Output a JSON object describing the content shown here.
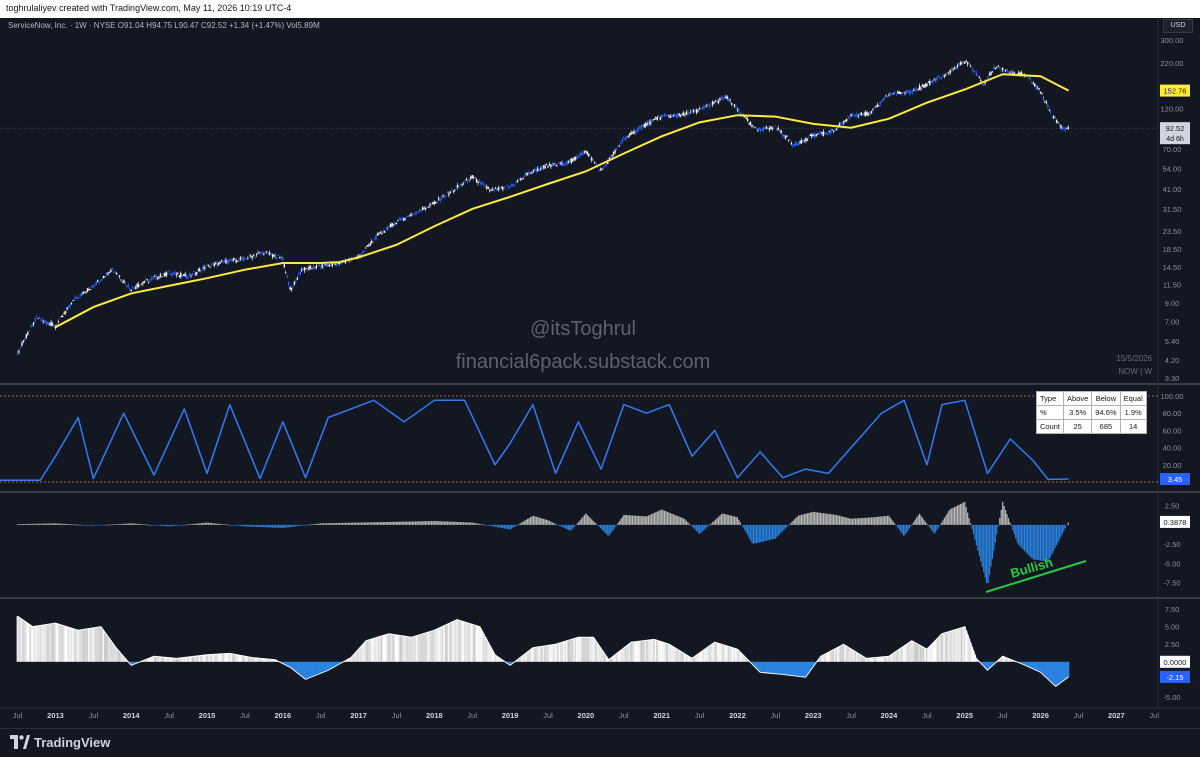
{
  "header": {
    "attribution": "toghrulaliyev created with TradingView.com, May 11, 2026 10:19 UTC-4"
  },
  "symbol": {
    "line": "ServiceNow, Inc. · 1W · NYSE  O91.04  H94.75  L90.47  C92.52  +1.34 (+1.47%)  Vol5.89M"
  },
  "currency": "USD",
  "watermark": {
    "handle": "@itsToghrul",
    "site": "financial6pack.substack.com"
  },
  "date_tag": {
    "date": "15/5/2026",
    "ticker": "NOW | W"
  },
  "stats_table": {
    "headers": [
      "Type",
      "Above",
      "Below",
      "Equal"
    ],
    "rows": [
      [
        "%",
        "3.5%",
        "94.6%",
        "1.9%"
      ],
      [
        "Count",
        "25",
        "685",
        "14"
      ]
    ]
  },
  "annotation": {
    "text": "Bullish"
  },
  "footer": {
    "brand": "TradingView"
  },
  "colors": {
    "background": "#131722",
    "candle_up": "#ffffff",
    "candle_down": "#2962ff",
    "ma": "#ffeb3b",
    "oscillator": "#2f7bf5",
    "divergence": "#26c940",
    "hist_positive": "#b8b8b8",
    "hist_negative": "#2a83e0"
  },
  "chart_data": [
    {
      "type": "line",
      "y_scale": "log",
      "y_ticks": [
        "300.00",
        "220.00",
        "160.00",
        "120.00",
        "95.00",
        "70.00",
        "54.00",
        "41.00",
        "31.50",
        "23.50",
        "18.50",
        "14.50",
        "11.50",
        "9.00",
        "7.00",
        "5.40",
        "4.20",
        "3.30"
      ],
      "x_labels": [
        "Jul",
        "2013",
        "Jul",
        "2014",
        "Jul",
        "2015",
        "Jul",
        "2016",
        "Jul",
        "2017",
        "Jul",
        "2018",
        "Jul",
        "2019",
        "Jul",
        "2020",
        "Jul",
        "2021",
        "Jul",
        "2022",
        "Jul",
        "2023",
        "Jul",
        "2024",
        "Jul",
        "2025",
        "Jul",
        "2026",
        "Jul",
        "2027",
        "Jul"
      ],
      "x": [
        2012.5,
        2012.75,
        2013.0,
        2013.25,
        2013.5,
        2013.75,
        2014.0,
        2014.25,
        2014.5,
        2014.75,
        2015.0,
        2015.25,
        2015.5,
        2015.75,
        2016.0,
        2016.1,
        2016.25,
        2016.5,
        2016.75,
        2017.0,
        2017.25,
        2017.5,
        2017.75,
        2018.0,
        2018.25,
        2018.5,
        2018.75,
        2019.0,
        2019.25,
        2019.5,
        2019.75,
        2020.0,
        2020.2,
        2020.5,
        2020.75,
        2021.0,
        2021.25,
        2021.5,
        2021.85,
        2022.0,
        2022.25,
        2022.5,
        2022.75,
        2023.0,
        2023.25,
        2023.5,
        2023.75,
        2024.0,
        2024.25,
        2024.5,
        2024.75,
        2025.0,
        2025.1,
        2025.25,
        2025.4,
        2025.6,
        2025.8,
        2026.0,
        2026.15,
        2026.3,
        2026.37
      ],
      "series": [
        {
          "name": "",
          "kind": "price",
          "values": [
            4.6,
            7.4,
            6.6,
            9.4,
            11.3,
            14.2,
            10.8,
            12.3,
            13.4,
            12.8,
            14.6,
            15.6,
            16.2,
            17.6,
            16.2,
            10.6,
            14.0,
            14.6,
            15.3,
            16.6,
            22.0,
            26.5,
            30.0,
            34.0,
            40.5,
            48.0,
            40.0,
            42.0,
            51.0,
            56.0,
            58.0,
            68.0,
            52.0,
            80.0,
            95.0,
            108.0,
            110.0,
            118.0,
            140.0,
            118.0,
            90.0,
            94.0,
            74.0,
            84.0,
            88.0,
            110.0,
            112.0,
            145.0,
            150.0,
            165.0,
            190.0,
            225.0,
            205.0,
            165.0,
            210.0,
            195.0,
            188.0,
            150.0,
            110.0,
            91.0,
            92.52
          ]
        },
        {
          "name": "",
          "kind": "moving_average",
          "x": [
            2013.0,
            2013.5,
            2014.0,
            2014.5,
            2015.0,
            2015.5,
            2016.0,
            2016.5,
            2016.75,
            2017.0,
            2017.5,
            2018.0,
            2018.5,
            2019.0,
            2019.5,
            2020.0,
            2020.5,
            2021.0,
            2021.5,
            2022.0,
            2022.5,
            2023.0,
            2023.5,
            2024.0,
            2024.5,
            2025.0,
            2025.5,
            2026.0,
            2026.37
          ],
          "values": [
            6.5,
            8.5,
            10.2,
            11.3,
            12.5,
            14.0,
            15.3,
            15.3,
            15.5,
            16.5,
            19.5,
            25.0,
            31.5,
            37.0,
            44.0,
            52.0,
            66.0,
            83.0,
            100.0,
            110.0,
            108.0,
            98.0,
            93.0,
            105.0,
            130.0,
            155.0,
            190.0,
            185.0,
            152.76
          ]
        }
      ],
      "last_labels": {
        "ma": "152.76",
        "price": "92.52",
        "countdown": "4d 6h"
      }
    },
    {
      "type": "line",
      "y_ticks": [
        "100.00",
        "80.00",
        "60.00",
        "40.00",
        "20.00",
        "0.00"
      ],
      "ylim": [
        0,
        100
      ],
      "x": [
        2012.2,
        2012.8,
        2013.0,
        2013.3,
        2013.5,
        2013.9,
        2014.3,
        2014.7,
        2015.0,
        2015.3,
        2015.7,
        2016.0,
        2016.3,
        2016.6,
        2016.9,
        2017.2,
        2017.6,
        2018.0,
        2018.4,
        2018.8,
        2019.0,
        2019.3,
        2019.6,
        2019.9,
        2020.2,
        2020.5,
        2020.8,
        2021.1,
        2021.4,
        2021.7,
        2022.0,
        2022.3,
        2022.6,
        2022.9,
        2023.2,
        2023.5,
        2023.9,
        2024.2,
        2024.5,
        2024.7,
        2025.0,
        2025.3,
        2025.6,
        2025.9,
        2026.1,
        2026.37
      ],
      "series": [
        {
          "name": "",
          "values": [
            2,
            2,
            30,
            75,
            4,
            80,
            8,
            85,
            10,
            90,
            4,
            70,
            5,
            75,
            85,
            95,
            70,
            95,
            95,
            20,
            45,
            90,
            10,
            70,
            15,
            90,
            80,
            90,
            30,
            60,
            5,
            35,
            5,
            15,
            10,
            40,
            80,
            95,
            20,
            90,
            95,
            10,
            50,
            25,
            3,
            3.45
          ]
        }
      ],
      "last_label": "3.45"
    },
    {
      "type": "bar",
      "y_ticks": [
        "2.50",
        "0.00",
        "-2.50",
        "-5.00",
        "-7.50"
      ],
      "ylim": [
        -9,
        3.5
      ],
      "x": [
        2012.5,
        2013.0,
        2013.5,
        2014.0,
        2014.5,
        2015.0,
        2015.5,
        2016.0,
        2016.5,
        2017.0,
        2017.5,
        2018.0,
        2018.5,
        2019.0,
        2019.3,
        2019.5,
        2019.8,
        2020.0,
        2020.3,
        2020.5,
        2020.8,
        2021.0,
        2021.3,
        2021.5,
        2021.8,
        2022.0,
        2022.2,
        2022.5,
        2022.8,
        2023.0,
        2023.3,
        2023.5,
        2023.8,
        2024.0,
        2024.2,
        2024.4,
        2024.6,
        2024.8,
        2025.0,
        2025.15,
        2025.3,
        2025.5,
        2025.7,
        2025.9,
        2026.1,
        2026.37
      ],
      "series": [
        {
          "name": "",
          "values": [
            0.1,
            0.2,
            -0.1,
            0.2,
            -0.2,
            0.3,
            -0.2,
            -0.4,
            0.2,
            0.3,
            0.4,
            0.5,
            0.3,
            -0.6,
            1.2,
            0.6,
            -0.8,
            1.5,
            -1.5,
            1.3,
            1.1,
            2.0,
            0.8,
            -1.2,
            1.5,
            1.0,
            -2.5,
            -1.8,
            1.2,
            1.7,
            1.3,
            0.8,
            1.0,
            1.2,
            -1.5,
            1.5,
            -1.2,
            2.0,
            3.0,
            -2.5,
            -8.0,
            3.0,
            -2.5,
            -4.5,
            -4.8,
            0.3878
          ]
        }
      ],
      "last_label": "0.3878",
      "annotation_label": "Bullish"
    },
    {
      "type": "area",
      "y_ticks": [
        "7.50",
        "5.00",
        "2.50",
        "0.0000",
        "-2.50",
        "-5.00"
      ],
      "ylim": [
        -6,
        8.5
      ],
      "x": [
        2012.5,
        2012.7,
        2013.0,
        2013.3,
        2013.6,
        2013.8,
        2014.0,
        2014.3,
        2014.6,
        2015.0,
        2015.3,
        2015.6,
        2015.9,
        2016.1,
        2016.3,
        2016.6,
        2016.9,
        2017.1,
        2017.4,
        2017.7,
        2018.0,
        2018.3,
        2018.6,
        2018.8,
        2019.0,
        2019.3,
        2019.6,
        2019.9,
        2020.1,
        2020.3,
        2020.6,
        2020.9,
        2021.1,
        2021.4,
        2021.7,
        2022.0,
        2022.3,
        2022.6,
        2022.9,
        2023.1,
        2023.4,
        2023.7,
        2024.0,
        2024.3,
        2024.5,
        2024.7,
        2025.0,
        2025.15,
        2025.3,
        2025.5,
        2025.8,
        2026.0,
        2026.2,
        2026.37
      ],
      "series": [
        {
          "name": "",
          "values": [
            6.5,
            5.0,
            5.5,
            4.5,
            5.0,
            2.0,
            -0.5,
            0.8,
            0.5,
            1.0,
            1.2,
            0.6,
            0.3,
            -0.8,
            -2.5,
            -1.2,
            0.6,
            3.0,
            4.0,
            3.5,
            4.5,
            6.0,
            5.0,
            1.0,
            -0.5,
            2.0,
            2.5,
            3.5,
            3.5,
            0.3,
            2.8,
            3.2,
            2.5,
            0.5,
            2.8,
            1.8,
            -1.5,
            -1.8,
            -2.2,
            0.8,
            2.5,
            0.5,
            0.8,
            3.0,
            1.8,
            4.0,
            5.0,
            0.5,
            -1.2,
            0.8,
            -0.5,
            -1.5,
            -3.5,
            -2.15
          ]
        }
      ],
      "last_label": "-2.15",
      "zero_label": "0.0000"
    }
  ]
}
